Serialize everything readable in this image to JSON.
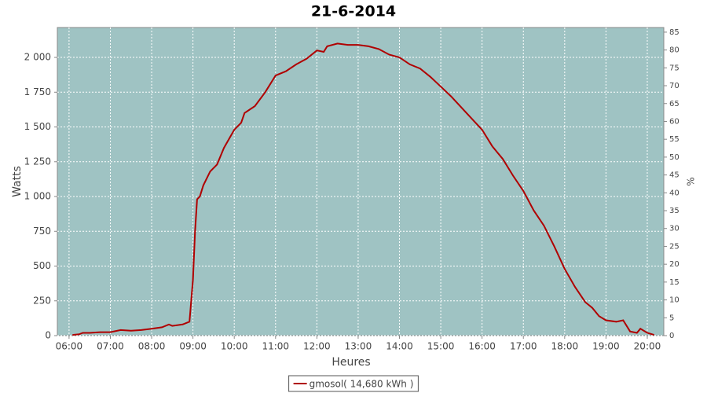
{
  "chart_data": {
    "type": "line",
    "title": "21-6-2014",
    "x_label": "Heures",
    "y_label": "Watts",
    "y2_label": "%",
    "xlim": [
      "05:43",
      "20:24"
    ],
    "xticks": [
      "06:00",
      "07:00",
      "08:00",
      "09:00",
      "10:00",
      "11:00",
      "12:00",
      "13:00",
      "14:00",
      "15:00",
      "16:00",
      "17:00",
      "18:00",
      "19:00",
      "20:00"
    ],
    "ylim": [
      0,
      2215
    ],
    "yticks": [
      0,
      250,
      500,
      750,
      {
        "value": 1000,
        "label": "1 000"
      },
      {
        "value": 1250,
        "label": "1 250"
      },
      {
        "value": 1500,
        "label": "1 500"
      },
      {
        "value": 1750,
        "label": "1 750"
      },
      {
        "value": 2000,
        "label": "2 000"
      }
    ],
    "y2lim": [
      0,
      86.3
    ],
    "y2ticks": [
      0,
      5,
      10,
      15,
      20,
      25,
      30,
      35,
      40,
      45,
      50,
      55,
      60,
      65,
      70,
      75,
      80,
      85
    ],
    "grid": true,
    "background": "#9fc3c3",
    "legend": "bottom",
    "x": [
      "06:05",
      "06:15",
      "06:20",
      "06:30",
      "06:45",
      "07:00",
      "07:15",
      "07:30",
      "07:45",
      "08:00",
      "08:15",
      "08:25",
      "08:30",
      "08:45",
      "08:55",
      "09:00",
      "09:03",
      "09:06",
      "09:10",
      "09:15",
      "09:25",
      "09:35",
      "09:45",
      "10:00",
      "10:10",
      "10:15",
      "10:30",
      "10:45",
      "11:00",
      "11:15",
      "11:30",
      "11:45",
      "12:00",
      "12:10",
      "12:15",
      "12:30",
      "12:45",
      "13:00",
      "13:15",
      "13:30",
      "13:45",
      "14:00",
      "14:15",
      "14:30",
      "14:45",
      "15:00",
      "15:15",
      "15:30",
      "15:45",
      "16:00",
      "16:15",
      "16:30",
      "16:45",
      "17:00",
      "17:15",
      "17:30",
      "17:45",
      "18:00",
      "18:15",
      "18:30",
      "18:40",
      "18:50",
      "19:00",
      "19:15",
      "19:25",
      "19:35",
      "19:45",
      "19:50",
      "20:00",
      "20:10"
    ],
    "series": [
      {
        "name": "gmosol( 14,680 kWh )",
        "color": "#b00000",
        "values": [
          5,
          10,
          20,
          20,
          25,
          25,
          40,
          35,
          40,
          50,
          60,
          80,
          70,
          80,
          100,
          400,
          750,
          980,
          1000,
          1080,
          1180,
          1230,
          1350,
          1480,
          1530,
          1600,
          1650,
          1750,
          1870,
          1900,
          1950,
          1990,
          2050,
          2040,
          2080,
          2100,
          2090,
          2090,
          2080,
          2060,
          2020,
          2000,
          1950,
          1920,
          1860,
          1790,
          1720,
          1640,
          1560,
          1480,
          1360,
          1270,
          1150,
          1040,
          900,
          790,
          640,
          480,
          350,
          240,
          200,
          140,
          110,
          100,
          110,
          30,
          20,
          50,
          20,
          5
        ]
      }
    ]
  }
}
